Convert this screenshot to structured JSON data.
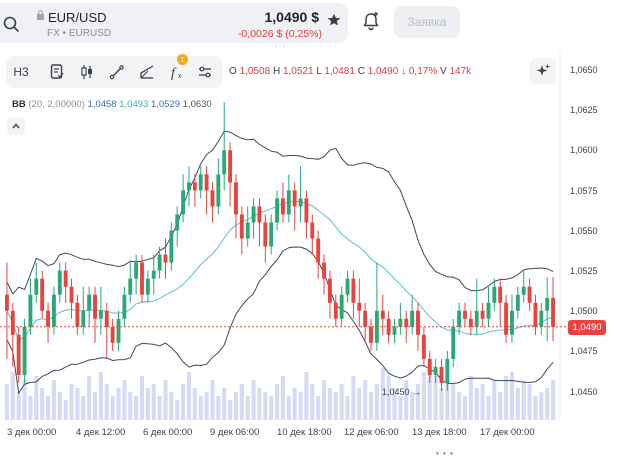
{
  "header": {
    "symbol": "EUR/USD",
    "subtitle": "FX • EURUSD",
    "price": "1,0490 $",
    "change": "-0,0026 $ (0,25%)",
    "order_label": "Заявка"
  },
  "toolbar": {
    "interval_label": "Н3",
    "badge_count": "1"
  },
  "ohlc": {
    "o_label": "O",
    "o_value": "1,0508",
    "h_label": "H",
    "h_value": "1,0521",
    "l_label": "L",
    "l_value": "1,0481",
    "c_label": "C",
    "c_value": "1,0490",
    "change": "↓ 0,17%",
    "v_label": "V",
    "v_value": "147k"
  },
  "indicator": {
    "name": "BB",
    "params": "(20, 2,00000)",
    "lower": "1,0458",
    "middle": "1,0493",
    "upper": "1,0529",
    "last": "1,0630"
  },
  "colors": {
    "up": "#2aa876",
    "down": "#e8433f",
    "band": "#3b4a5c",
    "mid": "#5bbfcf",
    "volume": "#c9cdf3"
  },
  "price_tag": "1,0490",
  "low_marker": "1,0450 →",
  "chart_data": {
    "type": "candlestick",
    "y_ticks": [
      "1,0650",
      "1,0625",
      "1,0600",
      "1,0575",
      "1,0550",
      "1,0525",
      "1,0500",
      "1,0475",
      "1,0450"
    ],
    "x_ticks": [
      "3 дек 00:00",
      "4 дек 12:00",
      "6 дек 00:00",
      "9 дек 06:00",
      "10 дек 18:00",
      "12 дек 06:00",
      "13 дек 18:00",
      "17 дек 00:00"
    ],
    "ylim": [
      1.044,
      1.066
    ],
    "last_price": 1.049,
    "low_marker_value": 1.045,
    "candles": [
      [
        1.051,
        1.05,
        1.053,
        1.047
      ],
      [
        1.05,
        1.0485,
        1.0505,
        1.0465
      ],
      [
        1.0485,
        1.046,
        1.049,
        1.0455
      ],
      [
        1.046,
        1.049,
        1.0495,
        1.0455
      ],
      [
        1.049,
        1.051,
        1.052,
        1.0485
      ],
      [
        1.051,
        1.052,
        1.053,
        1.0505
      ],
      [
        1.052,
        1.05,
        1.0525,
        1.0495
      ],
      [
        1.05,
        1.049,
        1.0505,
        1.048
      ],
      [
        1.049,
        1.051,
        1.0515,
        1.0485
      ],
      [
        1.051,
        1.0525,
        1.053,
        1.0505
      ],
      [
        1.0525,
        1.0515,
        1.053,
        1.0505
      ],
      [
        1.0515,
        1.0505,
        1.052,
        1.0495
      ],
      [
        1.0505,
        1.049,
        1.051,
        1.0485
      ],
      [
        1.049,
        1.05,
        1.0515,
        1.0485
      ],
      [
        1.05,
        1.051,
        1.0515,
        1.049
      ],
      [
        1.051,
        1.0495,
        1.0515,
        1.048
      ],
      [
        1.0495,
        1.05,
        1.0515,
        1.0485
      ],
      [
        1.05,
        1.049,
        1.0505,
        1.047
      ],
      [
        1.049,
        1.048,
        1.0495,
        1.0475
      ],
      [
        1.048,
        1.0495,
        1.05,
        1.0475
      ],
      [
        1.0495,
        1.051,
        1.0515,
        1.049
      ],
      [
        1.051,
        1.052,
        1.053,
        1.0505
      ],
      [
        1.052,
        1.053,
        1.0535,
        1.051
      ],
      [
        1.053,
        1.051,
        1.0535,
        1.0505
      ],
      [
        1.051,
        1.052,
        1.0525,
        1.0505
      ],
      [
        1.052,
        1.0525,
        1.0535,
        1.051
      ],
      [
        1.0525,
        1.0535,
        1.054,
        1.052
      ],
      [
        1.0535,
        1.053,
        1.0545,
        1.052
      ],
      [
        1.053,
        1.055,
        1.0555,
        1.0525
      ],
      [
        1.055,
        1.056,
        1.0565,
        1.054
      ],
      [
        1.056,
        1.0575,
        1.0585,
        1.0555
      ],
      [
        1.0575,
        1.058,
        1.059,
        1.0565
      ],
      [
        1.058,
        1.0575,
        1.0585,
        1.0565
      ],
      [
        1.0575,
        1.0585,
        1.059,
        1.057
      ],
      [
        1.0585,
        1.0575,
        1.059,
        1.056
      ],
      [
        1.0575,
        1.0565,
        1.058,
        1.0555
      ],
      [
        1.0565,
        1.0585,
        1.0595,
        1.056
      ],
      [
        1.0585,
        1.06,
        1.063,
        1.0575
      ],
      [
        1.06,
        1.058,
        1.0605,
        1.0565
      ],
      [
        1.058,
        1.056,
        1.0585,
        1.0545
      ],
      [
        1.056,
        1.0545,
        1.0565,
        1.0535
      ],
      [
        1.0545,
        1.0555,
        1.0565,
        1.054
      ],
      [
        1.0555,
        1.0565,
        1.057,
        1.0545
      ],
      [
        1.0565,
        1.0555,
        1.057,
        1.054
      ],
      [
        1.0555,
        1.054,
        1.056,
        1.053
      ],
      [
        1.054,
        1.0555,
        1.056,
        1.0535
      ],
      [
        1.0555,
        1.057,
        1.0575,
        1.055
      ],
      [
        1.057,
        1.056,
        1.058,
        1.0555
      ],
      [
        1.056,
        1.0575,
        1.0585,
        1.0555
      ],
      [
        1.0575,
        1.0565,
        1.058,
        1.055
      ],
      [
        1.0565,
        1.057,
        1.059,
        1.0555
      ],
      [
        1.057,
        1.0555,
        1.0575,
        1.0545
      ],
      [
        1.0555,
        1.0545,
        1.056,
        1.0535
      ],
      [
        1.0545,
        1.053,
        1.055,
        1.052
      ],
      [
        1.053,
        1.052,
        1.0535,
        1.051
      ],
      [
        1.052,
        1.0505,
        1.0525,
        1.0495
      ],
      [
        1.0505,
        1.0495,
        1.051,
        1.049
      ],
      [
        1.0495,
        1.051,
        1.0515,
        1.049
      ],
      [
        1.051,
        1.052,
        1.0525,
        1.0505
      ],
      [
        1.052,
        1.0505,
        1.0525,
        1.0495
      ],
      [
        1.0505,
        1.05,
        1.052,
        1.049
      ],
      [
        1.05,
        1.049,
        1.0505,
        1.048
      ],
      [
        1.049,
        1.048,
        1.0495,
        1.0475
      ],
      [
        1.048,
        1.05,
        1.053,
        1.0475
      ],
      [
        1.05,
        1.0495,
        1.051,
        1.0485
      ],
      [
        1.0495,
        1.0485,
        1.05,
        1.048
      ],
      [
        1.0485,
        1.049,
        1.0495,
        1.048
      ],
      [
        1.049,
        1.0495,
        1.0505,
        1.0485
      ],
      [
        1.0495,
        1.049,
        1.05,
        1.048
      ],
      [
        1.049,
        1.05,
        1.051,
        1.0485
      ],
      [
        1.05,
        1.0485,
        1.0505,
        1.0475
      ],
      [
        1.0485,
        1.047,
        1.049,
        1.0465
      ],
      [
        1.047,
        1.046,
        1.0475,
        1.0455
      ],
      [
        1.046,
        1.0465,
        1.047,
        1.0455
      ],
      [
        1.0465,
        1.0455,
        1.047,
        1.045
      ],
      [
        1.0455,
        1.047,
        1.0475,
        1.045
      ],
      [
        1.047,
        1.049,
        1.0495,
        1.0465
      ],
      [
        1.049,
        1.05,
        1.0505,
        1.0485
      ],
      [
        1.05,
        1.0495,
        1.0505,
        1.049
      ],
      [
        1.0495,
        1.049,
        1.05,
        1.0485
      ],
      [
        1.049,
        1.05,
        1.052,
        1.0485
      ],
      [
        1.05,
        1.0495,
        1.0505,
        1.049
      ],
      [
        1.0495,
        1.0505,
        1.0515,
        1.049
      ],
      [
        1.0505,
        1.0515,
        1.052,
        1.05
      ],
      [
        1.0515,
        1.0505,
        1.052,
        1.049
      ],
      [
        1.0505,
        1.0485,
        1.051,
        1.048
      ],
      [
        1.0485,
        1.05,
        1.051,
        1.048
      ],
      [
        1.05,
        1.051,
        1.0515,
        1.0495
      ],
      [
        1.051,
        1.0515,
        1.0525,
        1.0505
      ],
      [
        1.0515,
        1.0505,
        1.052,
        1.05
      ],
      [
        1.0505,
        1.049,
        1.051,
        1.0485
      ],
      [
        1.049,
        1.05,
        1.0505,
        1.0485
      ],
      [
        1.05,
        1.0508,
        1.0521,
        1.0481
      ],
      [
        1.0508,
        1.049,
        1.0521,
        1.0481
      ]
    ],
    "volume": [
      0.45,
      0.6,
      0.35,
      0.5,
      0.3,
      0.55,
      0.4,
      0.3,
      0.5,
      0.35,
      0.25,
      0.45,
      0.4,
      0.3,
      0.55,
      0.35,
      0.6,
      0.45,
      0.3,
      0.4,
      0.5,
      0.35,
      0.3,
      0.55,
      0.4,
      0.45,
      0.3,
      0.5,
      0.35,
      0.25,
      0.45,
      0.6,
      0.4,
      0.3,
      0.35,
      0.5,
      0.3,
      0.4,
      0.25,
      0.35,
      0.45,
      0.3,
      0.5,
      0.4,
      0.35,
      0.3,
      0.45,
      0.55,
      0.3,
      0.4,
      0.35,
      0.6,
      0.45,
      0.3,
      0.5,
      0.4,
      0.35,
      0.45,
      0.3,
      0.55,
      0.4,
      0.5,
      0.35,
      0.45,
      0.65,
      0.55,
      0.4,
      0.3,
      0.5,
      0.35,
      0.45,
      0.6,
      0.7,
      0.55,
      0.4,
      0.5,
      0.45,
      0.35,
      0.3,
      0.55,
      0.4,
      0.45,
      0.3,
      0.5,
      0.35,
      0.55,
      0.6,
      0.4,
      0.5,
      0.45,
      0.3,
      0.35,
      0.4,
      0.5
    ]
  }
}
